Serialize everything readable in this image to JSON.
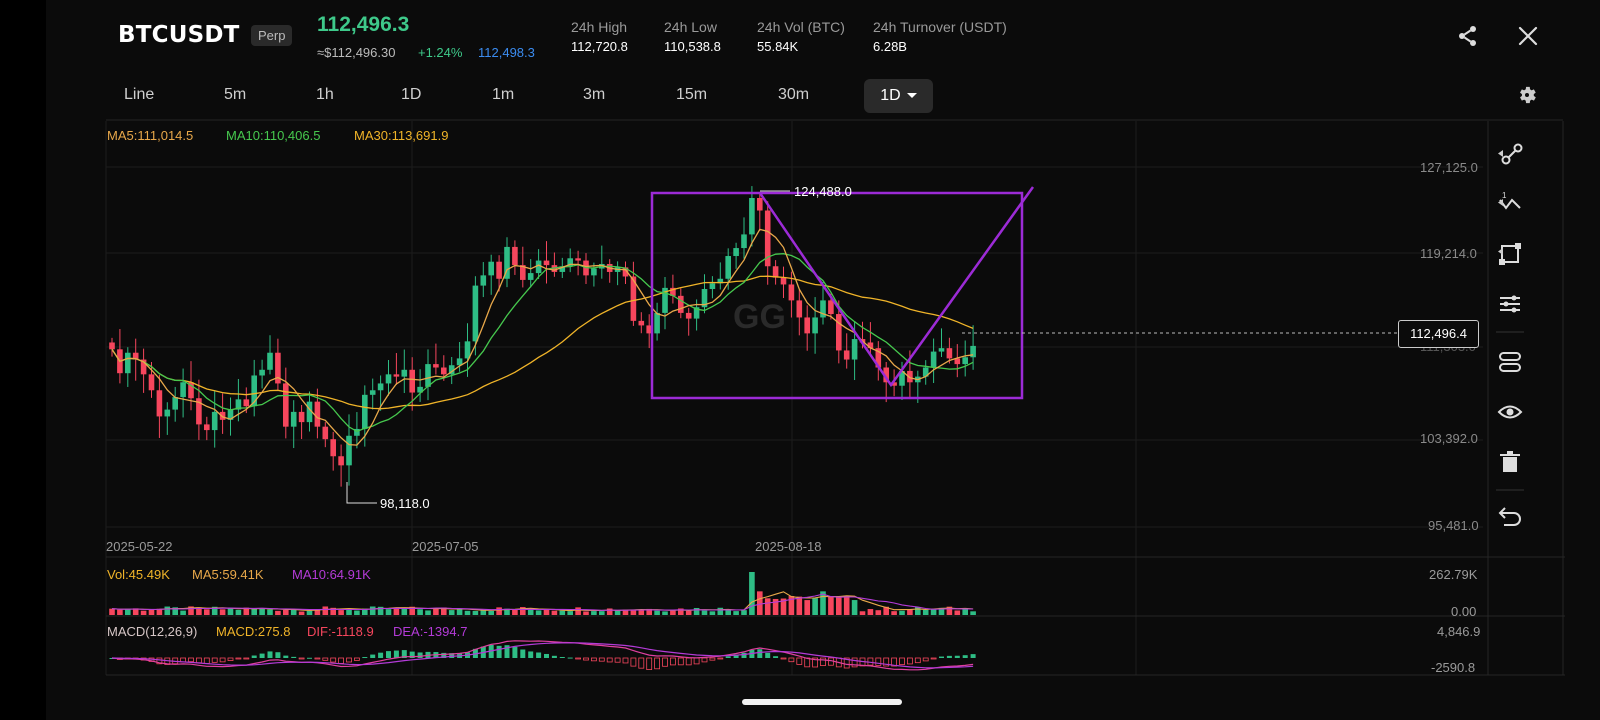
{
  "header": {
    "symbol": "BTCUSDT",
    "badge": "Perp",
    "last_price": "112,496.3",
    "fiat_price": "≈$112,496.30",
    "change_pct": "+1.24%",
    "mark_price": "112,498.3",
    "stats": [
      {
        "label": "24h High",
        "value": "112,720.8"
      },
      {
        "label": "24h Low",
        "value": "110,538.8"
      },
      {
        "label": "24h Vol (BTC)",
        "value": "55.84K"
      },
      {
        "label": "24h Turnover (USDT)",
        "value": "6.28B"
      }
    ]
  },
  "timeframes": [
    "Line",
    "5m",
    "1h",
    "1D",
    "1m",
    "3m",
    "15m",
    "30m"
  ],
  "active_timeframe": "1D",
  "ma_legend": {
    "ma5": "MA5:111,014.5",
    "ma10": "MA10:110,406.5",
    "ma30": "MA30:113,691.9"
  },
  "price_axis": [
    "127,125.0",
    "119,214.0",
    "103,392.0",
    "95,481.0"
  ],
  "current_price_tag": "112,496.4",
  "hidden_axis_label": "111,303.0",
  "chart_annotations": {
    "high": "124,488.0",
    "low": "98,118.0"
  },
  "watermark": "GG",
  "date_axis": [
    "2025-05-22",
    "2025-07-05",
    "2025-08-18"
  ],
  "volume_legend": {
    "vol": "Vol:45.49K",
    "ma5": "MA5:59.41K",
    "ma10": "MA10:64.91K"
  },
  "volume_axis": [
    "262.79K",
    "0.00"
  ],
  "macd_legend": {
    "params": "MACD(12,26,9)",
    "macd": "MACD:275.8",
    "dif": "DIF:-1118.9",
    "dea": "DEA:-1394.7"
  },
  "macd_axis": [
    "4,846.9",
    "-2590.8"
  ],
  "colors": {
    "up": "#2ebd85",
    "down": "#f6465d",
    "ma5": "#e8a84a",
    "ma10": "#46c84e",
    "ma30": "#f0b429",
    "drawing": "#9c2bd6",
    "vol_ma10": "#b43bd8",
    "accent_blue": "#3b8cf0"
  },
  "toolbar_icons": [
    "trend-line-icon",
    "fib-icon",
    "shape-icon",
    "indicator-icon",
    "path-icon",
    "eye-icon",
    "trash-icon",
    "undo-icon"
  ],
  "chart_data": {
    "type": "candlestick",
    "x_start": "2025-05-22",
    "interval": "1D",
    "ylim": [
      95481.0,
      127125.0
    ],
    "annotations": {
      "high": 124488.0,
      "low": 98118.0
    },
    "close": [
      111100,
      109000,
      110800,
      110200,
      108900,
      107500,
      105200,
      105800,
      106900,
      108200,
      106800,
      104500,
      104000,
      105600,
      104900,
      105800,
      106700,
      106100,
      108800,
      109300,
      110800,
      108100,
      104300,
      105600,
      104700,
      106500,
      104300,
      103200,
      101700,
      100900,
      103500,
      104100,
      107100,
      107500,
      108100,
      108900,
      108700,
      109300,
      107300,
      107800,
      109800,
      109500,
      108900,
      109700,
      110300,
      111800,
      116700,
      117600,
      118800,
      117300,
      120100,
      118500,
      117200,
      117800,
      118900,
      118500,
      117900,
      118400,
      119100,
      118900,
      117600,
      118200,
      118600,
      117900,
      118300,
      117500,
      113600,
      113200,
      112500,
      114300,
      116500,
      115800,
      114300,
      113800,
      114800,
      116400,
      116900,
      117300,
      119300,
      120000,
      121200,
      124400,
      123300,
      118400,
      117400,
      116800,
      115400,
      113900,
      112500,
      113900,
      115400,
      114200,
      111000,
      110200,
      112000,
      111700,
      111200,
      109500,
      108200,
      107900,
      109200,
      108200,
      108700,
      109500,
      110900,
      111200,
      110300,
      109800,
      110400,
      111400
    ],
    "volume_range": [
      0,
      262790
    ],
    "macd_range": [
      -2590.8,
      4846.9
    ]
  }
}
